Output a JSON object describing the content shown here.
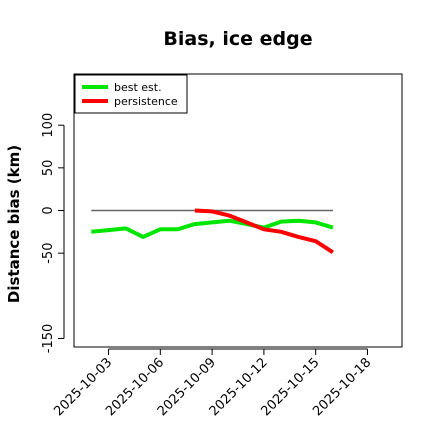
{
  "chart_data": {
    "type": "line",
    "title": "Bias, ice edge",
    "xlabel": "",
    "ylabel": "Distance bias (km)",
    "xlim": [
      "2025-10-01",
      "2025-10-20"
    ],
    "ylim": [
      -160,
      160
    ],
    "x_ticks": [
      "2025-10-03",
      "2025-10-06",
      "2025-10-09",
      "2025-10-12",
      "2025-10-15",
      "2025-10-18"
    ],
    "y_ticks": [
      -150,
      -50,
      0,
      50,
      100
    ],
    "grid": false,
    "legend_position": "top-left",
    "reference_line": {
      "x": [
        "2025-10-02",
        "2025-10-16"
      ],
      "y": [
        0,
        0
      ],
      "color": "#666666"
    },
    "series": [
      {
        "name": "best est.",
        "color": "#00e600",
        "x": [
          "2025-10-02",
          "2025-10-03",
          "2025-10-04",
          "2025-10-05",
          "2025-10-06",
          "2025-10-07",
          "2025-10-08",
          "2025-10-09",
          "2025-10-10",
          "2025-10-11",
          "2025-10-12",
          "2025-10-13",
          "2025-10-14",
          "2025-10-15",
          "2025-10-16"
        ],
        "y": [
          -25,
          -23,
          -21,
          -31,
          -22,
          -22,
          -16,
          -14,
          -12,
          -16,
          -20,
          -13,
          -12,
          -14,
          -20
        ]
      },
      {
        "name": "persistence",
        "color": "#ff0000",
        "x": [
          "2025-10-08",
          "2025-10-09",
          "2025-10-10",
          "2025-10-11",
          "2025-10-12",
          "2025-10-13",
          "2025-10-14",
          "2025-10-15",
          "2025-10-16"
        ],
        "y": [
          0,
          -1,
          -6,
          -14,
          -22,
          -25,
          -31,
          -36,
          -49
        ]
      }
    ]
  }
}
